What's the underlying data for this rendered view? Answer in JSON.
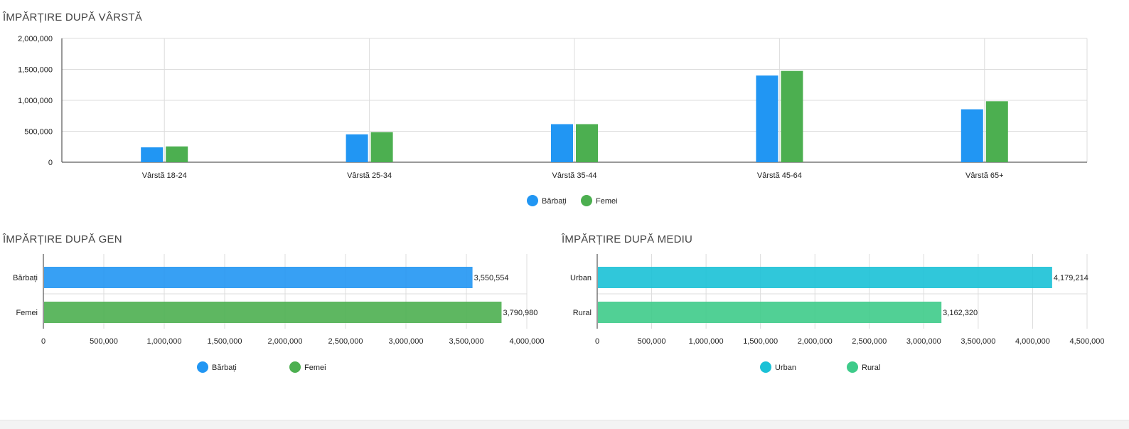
{
  "sections": {
    "age_title": "ÎMPĂRȚIRE DUPĂ VÂRSTĂ",
    "gender_title": "ÎMPĂRȚIRE DUPĂ GEN",
    "env_title": "ÎMPĂRȚIRE DUPĂ MEDIU"
  },
  "colors": {
    "blue": "#2196f3",
    "green": "#4caf50",
    "cyan": "#1ac1d6",
    "teal": "#3ecb8a"
  },
  "chart_data": [
    {
      "type": "bar",
      "title": "ÎMPĂRȚIRE DUPĂ VÂRSTĂ",
      "categories": [
        "Vârstă 18-24",
        "Vârstă 25-34",
        "Vârstă 35-44",
        "Vârstă 45-64",
        "Vârstă 65+"
      ],
      "series": [
        {
          "name": "Bărbați",
          "color": "#2196f3",
          "values": [
            240000,
            450000,
            615000,
            1400000,
            855000
          ]
        },
        {
          "name": "Femei",
          "color": "#4caf50",
          "values": [
            255000,
            485000,
            615000,
            1475000,
            985000
          ]
        }
      ],
      "yticks": [
        "0",
        "500,000",
        "1,000,000",
        "1,500,000",
        "2,000,000"
      ],
      "ylim": [
        0,
        2000000
      ],
      "grid": true,
      "legend": "bottom-center"
    },
    {
      "type": "bar",
      "orientation": "horizontal",
      "title": "ÎMPĂRȚIRE DUPĂ GEN",
      "categories": [
        "Bărbați",
        "Femei"
      ],
      "values": [
        3550554,
        3790980
      ],
      "value_labels": [
        "3,550,554",
        "3,790,980"
      ],
      "colors": [
        "#2196f3",
        "#4caf50"
      ],
      "xticks": [
        "0",
        "500,000",
        "1,000,000",
        "1,500,000",
        "2,000,000",
        "2,500,000",
        "3,000,000",
        "3,500,000",
        "4,000,000"
      ],
      "xlim": [
        0,
        4000000
      ],
      "legend_items": [
        "Bărbați",
        "Femei"
      ],
      "grid": true,
      "legend": "bottom-center"
    },
    {
      "type": "bar",
      "orientation": "horizontal",
      "title": "ÎMPĂRȚIRE DUPĂ MEDIU",
      "categories": [
        "Urban",
        "Rural"
      ],
      "values": [
        4179214,
        3162320
      ],
      "value_labels": [
        "4,179,214",
        "3,162,320"
      ],
      "colors": [
        "#1ac1d6",
        "#3ecb8a"
      ],
      "xticks": [
        "0",
        "500,000",
        "1,000,000",
        "1,500,000",
        "2,000,000",
        "2,500,000",
        "3,000,000",
        "3,500,000",
        "4,000,000",
        "4,500,000"
      ],
      "xlim": [
        0,
        4500000
      ],
      "legend_items": [
        "Urban",
        "Rural"
      ],
      "grid": true,
      "legend": "bottom-center"
    }
  ]
}
